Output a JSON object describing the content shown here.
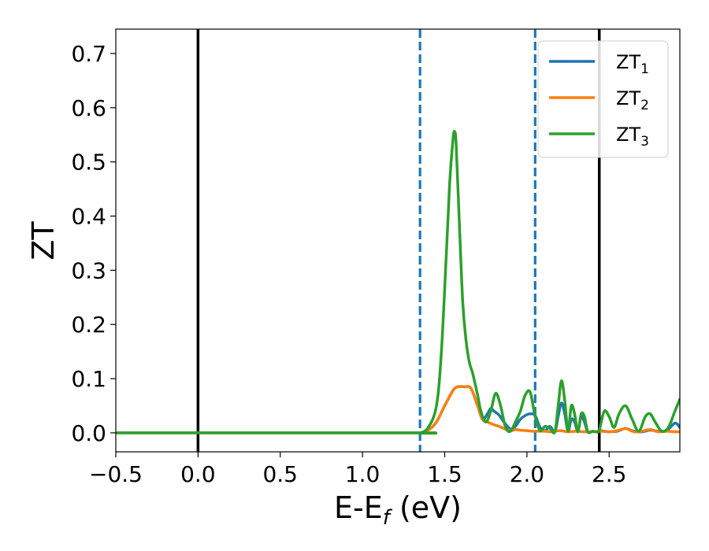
{
  "chart_data": {
    "type": "line",
    "xlabel": "E-E",
    "xlabel_sub": "f",
    "xlabel_unit": " (eV)",
    "ylabel": "ZT",
    "xlim": [
      -0.5,
      2.93
    ],
    "ylim": [
      -0.035,
      0.745
    ],
    "xticks": [
      -0.5,
      0.0,
      0.5,
      1.0,
      1.5,
      2.0,
      2.5
    ],
    "xtick_labels": [
      "−0.5",
      "0.0",
      "0.5",
      "1.0",
      "1.5",
      "2.0",
      "2.5"
    ],
    "yticks": [
      0.0,
      0.1,
      0.2,
      0.3,
      0.4,
      0.5,
      0.6,
      0.7
    ],
    "ytick_labels": [
      "0.0",
      "0.1",
      "0.2",
      "0.3",
      "0.4",
      "0.5",
      "0.6",
      "0.7"
    ],
    "grid": false,
    "legend_position": "top-right",
    "vlines": [
      {
        "x": 0.0,
        "style": "solid",
        "color": "#000000"
      },
      {
        "x": 2.44,
        "style": "solid",
        "color": "#000000"
      },
      {
        "x": 1.35,
        "style": "dashed",
        "color": "#1f77b4"
      },
      {
        "x": 2.05,
        "style": "dashed",
        "color": "#1f77b4"
      }
    ],
    "series": [
      {
        "name": "ZT",
        "sub": "1",
        "color": "#1f77b4",
        "x": [
          -0.5,
          1.3,
          1.35,
          1.4,
          1.45,
          1.5,
          1.55,
          1.58,
          1.62,
          1.66,
          1.7,
          1.73,
          1.76,
          1.78,
          1.8,
          1.83,
          1.86,
          1.9,
          1.93,
          1.96,
          1.99,
          2.02,
          2.05,
          2.08,
          2.11,
          2.14,
          2.17,
          2.19,
          2.21,
          2.23,
          2.25,
          2.27,
          2.29,
          2.31,
          2.33,
          2.35,
          2.37,
          2.4,
          2.42,
          2.44,
          2.47,
          2.5,
          2.55,
          2.6,
          2.65,
          2.7,
          2.75,
          2.8,
          2.85,
          2.9,
          2.93
        ],
        "values": [
          0.0,
          0.0,
          0.0,
          0.005,
          0.02,
          0.05,
          0.078,
          0.085,
          0.085,
          0.082,
          0.05,
          0.025,
          0.035,
          0.045,
          0.04,
          0.033,
          0.02,
          0.007,
          0.012,
          0.025,
          0.032,
          0.035,
          0.032,
          0.01,
          0.004,
          0.012,
          0.002,
          0.03,
          0.055,
          0.035,
          0.003,
          0.025,
          0.02,
          0.003,
          0.03,
          0.02,
          0.002,
          0.003,
          0.002,
          0.004,
          0.003,
          0.002,
          0.003,
          0.008,
          0.003,
          0.002,
          0.005,
          0.003,
          0.004,
          0.018,
          0.01
        ]
      },
      {
        "name": "ZT",
        "sub": "2",
        "color": "#ff7f0e",
        "x": [
          -0.5,
          1.3,
          1.35,
          1.4,
          1.45,
          1.5,
          1.55,
          1.58,
          1.62,
          1.66,
          1.7,
          1.73,
          1.76,
          1.8,
          1.83,
          1.86,
          1.9,
          1.93,
          1.96,
          2.0,
          2.05,
          2.1,
          2.15,
          2.2,
          2.25,
          2.3,
          2.35,
          2.4,
          2.45,
          2.5,
          2.55,
          2.6,
          2.65,
          2.7,
          2.75,
          2.8,
          2.85,
          2.9,
          2.93
        ],
        "values": [
          0.0,
          0.0,
          0.0,
          0.005,
          0.02,
          0.05,
          0.078,
          0.085,
          0.085,
          0.082,
          0.05,
          0.025,
          0.02,
          0.015,
          0.012,
          0.008,
          0.004,
          0.006,
          0.005,
          0.004,
          0.003,
          0.003,
          0.002,
          0.004,
          0.002,
          0.003,
          0.002,
          0.002,
          0.003,
          0.002,
          0.004,
          0.008,
          0.002,
          0.003,
          0.006,
          0.002,
          0.003,
          0.002,
          0.002
        ]
      },
      {
        "name": "ZT",
        "sub": "3",
        "color": "#2ca02c",
        "x": [
          -0.5,
          1.3,
          1.35,
          1.4,
          1.45,
          1.48,
          1.51,
          1.53,
          1.55,
          1.56,
          1.57,
          1.59,
          1.61,
          1.63,
          1.65,
          1.67,
          1.7,
          1.72,
          1.75,
          1.78,
          1.81,
          1.84,
          1.87,
          1.9,
          1.93,
          1.96,
          1.99,
          2.02,
          2.05,
          2.08,
          2.11,
          2.14,
          2.17,
          2.19,
          2.21,
          2.23,
          2.25,
          2.27,
          2.29,
          2.31,
          2.33,
          2.35,
          2.37,
          2.4,
          2.42,
          2.44,
          2.47,
          2.5,
          2.53,
          2.56,
          2.6,
          2.64,
          2.68,
          2.72,
          2.75,
          2.78,
          2.82,
          2.86,
          2.9,
          2.93
        ],
        "values": [
          0.0,
          0.0,
          0.0,
          0.01,
          0.05,
          0.15,
          0.33,
          0.46,
          0.54,
          0.556,
          0.53,
          0.38,
          0.24,
          0.17,
          0.13,
          0.11,
          0.07,
          0.04,
          0.02,
          0.04,
          0.073,
          0.05,
          0.01,
          0.003,
          0.02,
          0.04,
          0.07,
          0.075,
          0.03,
          0.004,
          0.012,
          0.008,
          0.002,
          0.05,
          0.096,
          0.06,
          0.003,
          0.05,
          0.035,
          0.002,
          0.035,
          0.03,
          0.002,
          0.003,
          0.002,
          0.005,
          0.04,
          0.03,
          0.01,
          0.035,
          0.05,
          0.025,
          0.003,
          0.03,
          0.035,
          0.02,
          0.003,
          0.01,
          0.04,
          0.062
        ]
      }
    ]
  }
}
